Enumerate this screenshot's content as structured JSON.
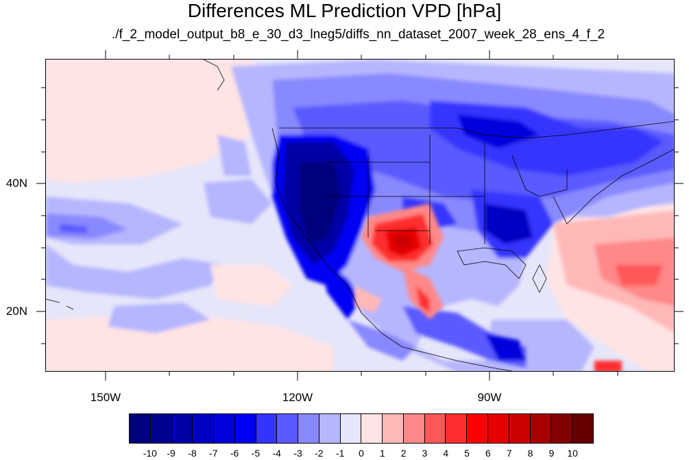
{
  "title": "Differences ML Prediction VPD [hPa]",
  "subtitle": "./f_2_model_output_b8_e_30_d3_lneg5/diffs_nn_dataset_2007_week_28_ens_4_f_2",
  "map": {
    "projection": "cylindrical equidistant",
    "lon_range": [
      -160,
      -62
    ],
    "lat_range": [
      11,
      60
    ],
    "lon_ticks": [
      "150W",
      "120W",
      "90W"
    ],
    "lat_ticks": [
      "40N",
      "20N"
    ]
  },
  "colorbar": {
    "labels": [
      "-10",
      "-9",
      "-8",
      "-7",
      "-6",
      "-5",
      "-4",
      "-3",
      "-2",
      "-1",
      "0",
      "1",
      "2",
      "3",
      "4",
      "5",
      "6",
      "7",
      "8",
      "9",
      "10"
    ],
    "colors": [
      "#00007a",
      "#00008f",
      "#0000a6",
      "#0000c2",
      "#0000dc",
      "#0000f5",
      "#3434ff",
      "#5a5aff",
      "#8888ff",
      "#b6b6ff",
      "#e6e6fa",
      "#ffe4e4",
      "#ffb8b8",
      "#ff8888",
      "#ff5858",
      "#ff2e2e",
      "#ff0000",
      "#e60000",
      "#cc0000",
      "#a80000",
      "#820000",
      "#640000"
    ]
  }
}
